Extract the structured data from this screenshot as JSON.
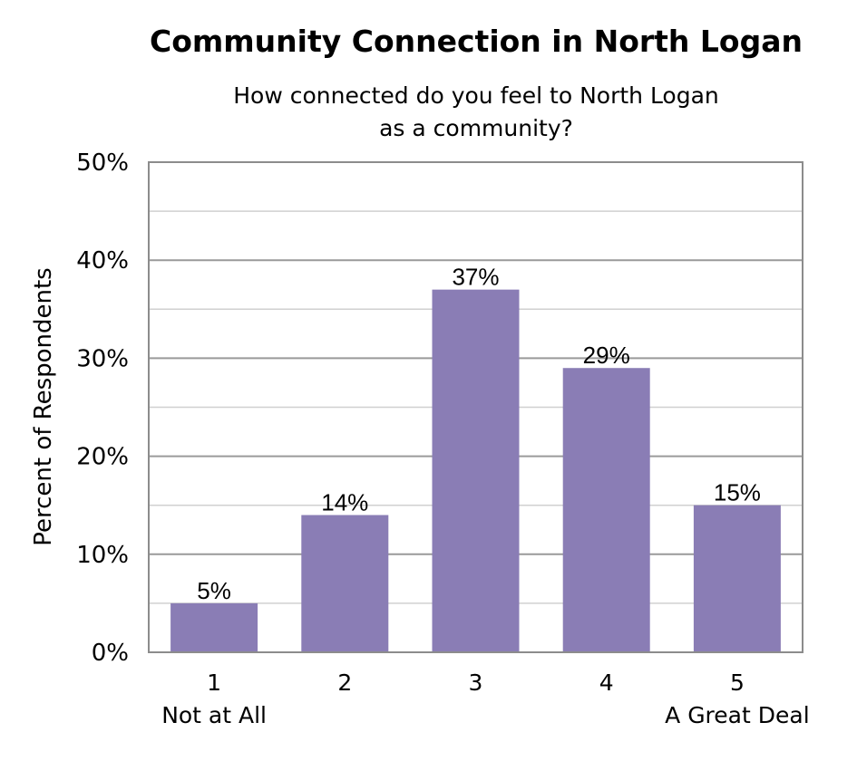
{
  "chart_data": {
    "type": "bar",
    "title": "Community Connection in North Logan",
    "subtitle": [
      "How connected do you feel to North Logan",
      "as a community?"
    ],
    "ylabel": "Percent of Respondents",
    "xlabel": "",
    "categories": [
      "1",
      "2",
      "3",
      "4",
      "5"
    ],
    "category_sublabels": [
      "Not at All",
      "",
      "",
      "",
      "A Great Deal"
    ],
    "values": [
      5,
      14,
      37,
      29,
      15
    ],
    "data_labels": [
      "5%",
      "14%",
      "37%",
      "29%",
      "15%"
    ],
    "y_ticks": [
      "0%",
      "10%",
      "20%",
      "30%",
      "40%",
      "50%"
    ],
    "ylim": [
      0,
      50
    ],
    "grid": true,
    "bar_color": "#8a7db5",
    "legend": "none"
  }
}
